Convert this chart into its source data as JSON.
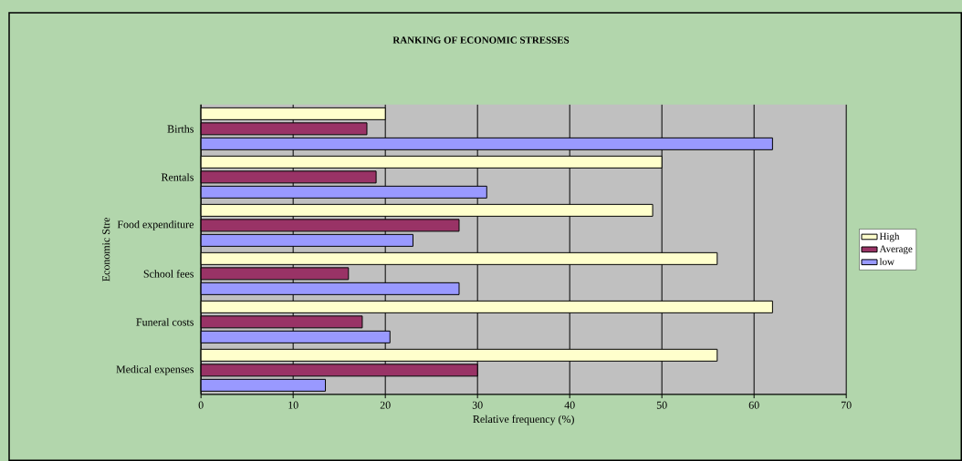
{
  "chart_data": {
    "type": "bar",
    "orientation": "horizontal",
    "title": "RANKING OF ECONOMIC STRESSES",
    "xlabel": "Relative frequency (%)",
    "ylabel": "Economic Stre",
    "categories": [
      "Births",
      "Rentals",
      "Food expenditure",
      "School fees",
      "Funeral costs",
      "Medical expenses"
    ],
    "series": [
      {
        "name": "High",
        "color": "#ffffcc",
        "values": [
          20,
          50,
          49,
          56,
          62,
          56
        ]
      },
      {
        "name": "Average",
        "color": "#993366",
        "values": [
          18,
          19,
          28,
          16,
          17.5,
          30
        ]
      },
      {
        "name": "low",
        "color": "#9999ff",
        "values": [
          62,
          31,
          23,
          28,
          20.5,
          13.5
        ]
      }
    ],
    "xlim": [
      0,
      70
    ],
    "xticks": [
      0,
      10,
      20,
      30,
      40,
      50,
      60,
      70
    ],
    "grid": "x",
    "legend": "right"
  }
}
